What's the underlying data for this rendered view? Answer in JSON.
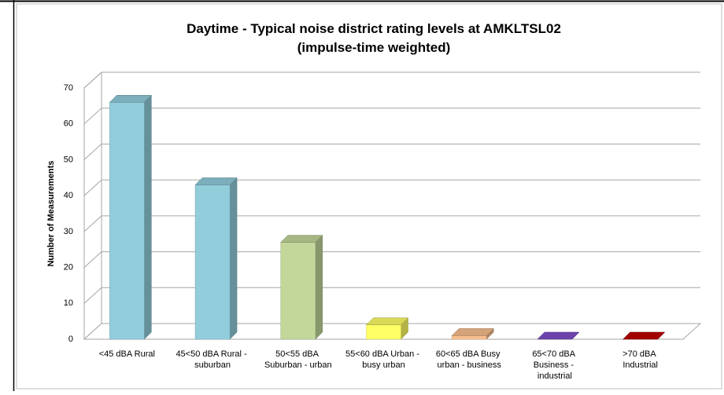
{
  "chart_data": {
    "type": "bar3d",
    "title": [
      "Daytime - Typical noise district rating levels at AMKLTSL02",
      "(impulse-time weighted)"
    ],
    "ylabel": "Number of Measurements",
    "categories": [
      "<45 dBA Rural",
      "45<50 dBA Rural - suburban",
      "50<55 dBA Suburban - urban",
      "55<60 dBA Urban - busy urban",
      "60<65 dBA Busy urban - business",
      "65<70 dBA Business - industrial",
      ">70 dBA Industrial"
    ],
    "values": [
      66,
      43,
      27,
      4,
      1,
      0,
      0
    ],
    "colors": [
      "#92cddc",
      "#92cddc",
      "#c4d79b",
      "#ffff66",
      "#fac090",
      "#7f4fc9",
      "#c00000"
    ],
    "ylim": [
      0,
      70
    ],
    "yticks": [
      0,
      10,
      20,
      30,
      40,
      50,
      60,
      70
    ],
    "grid": true
  }
}
